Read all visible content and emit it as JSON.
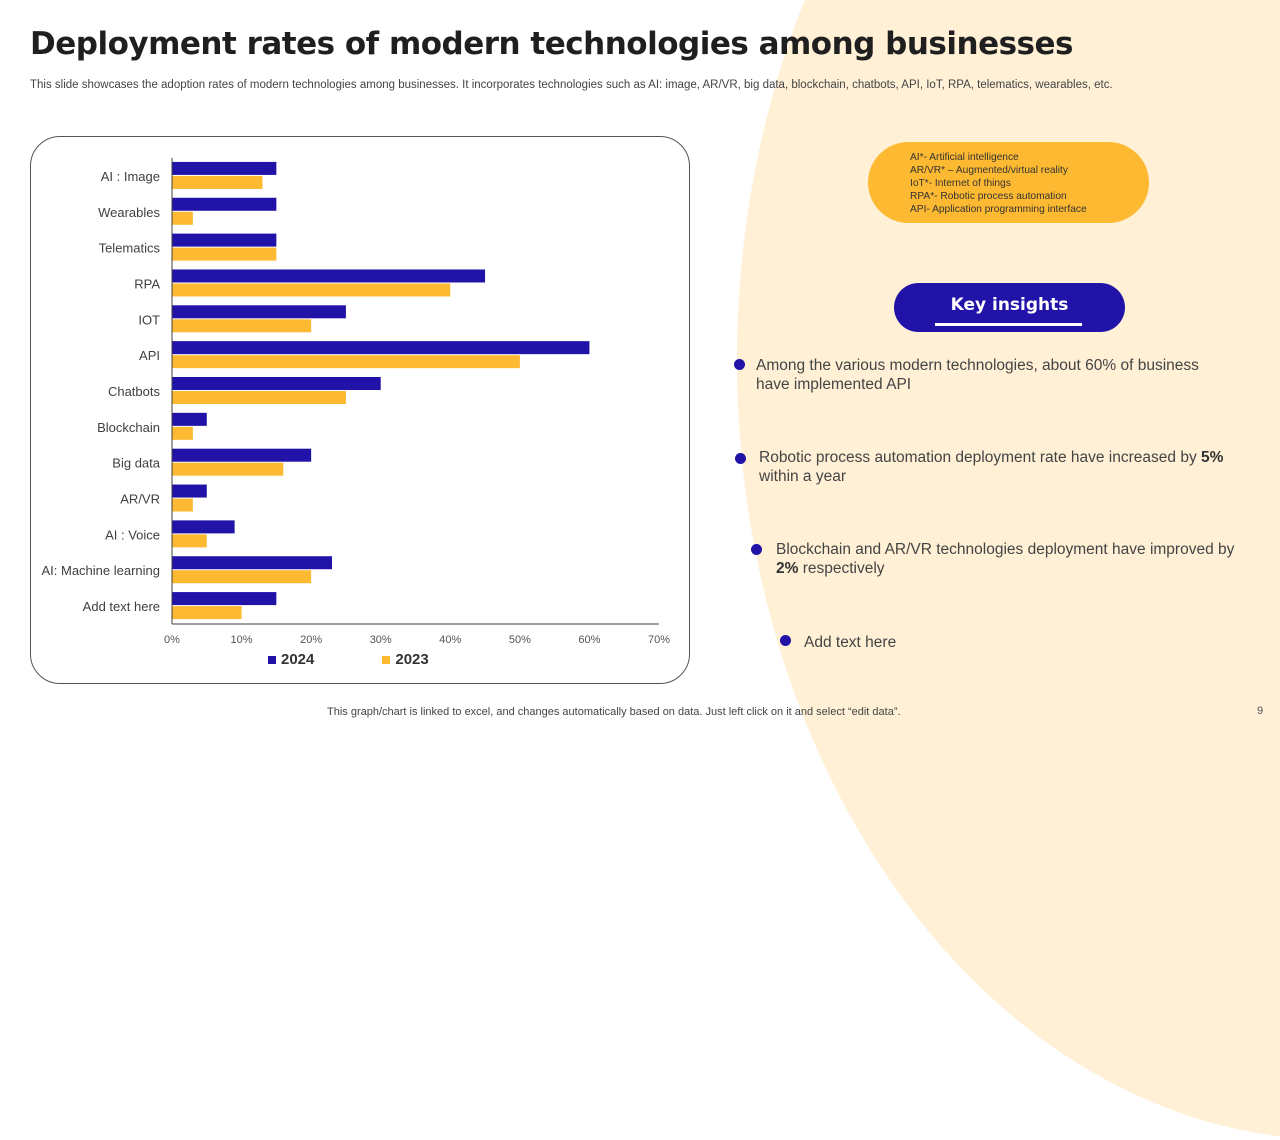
{
  "title": "Deployment rates of modern technologies among businesses",
  "subtitle": "This slide showcases the adoption rates of modern technologies among businesses. It incorporates technologies such as AI: image, AR/VR,  big data, blockchain, chatbots, API,  IoT,  RPA, telematics, wearables, etc.",
  "colors": {
    "series_2024": "#2112a8",
    "series_2023": "#fdb931",
    "accent_background": "#fff0d6",
    "key_button": "#2112a8"
  },
  "chart_data": {
    "type": "bar",
    "orientation": "horizontal",
    "title": "",
    "xlabel": "",
    "ylabel": "",
    "categories": [
      "AI : Image",
      "Wearables",
      "Telematics",
      "RPA",
      "IOT",
      "API",
      "Chatbots",
      "Blockchain",
      "Big data",
      "AR/VR",
      "AI : Voice",
      "AI: Machine learning",
      "Add text here"
    ],
    "series": [
      {
        "name": "2024",
        "values": [
          15,
          15,
          15,
          45,
          25,
          60,
          30,
          5,
          20,
          5,
          9,
          23,
          15
        ]
      },
      {
        "name": "2023",
        "values": [
          13,
          3,
          15,
          40,
          20,
          50,
          25,
          3,
          16,
          3,
          5,
          20,
          10
        ]
      }
    ],
    "unit": "%",
    "xlim": [
      0,
      70
    ],
    "x_ticks": [
      "0%",
      "10%",
      "20%",
      "30%",
      "40%",
      "50%",
      "60%",
      "70%"
    ],
    "grid": false,
    "legend": [
      "2024",
      "2023"
    ],
    "legend_position": "bottom"
  },
  "abbreviations": [
    "AI*- Artificial intelligence",
    "AR/VR* – Augmented/virtual reality",
    "IoT*- Internet of things",
    "RPA*- Robotic process automation",
    "API- Application programming interface"
  ],
  "key_insights": {
    "label": "Key insights",
    "items": [
      {
        "text": "Among the various modern technologies, about 60% of business have implemented API",
        "bold": ""
      },
      {
        "text": "Robotic process automation deployment rate have increased by ",
        "bold": "5%",
        "after": "within a year"
      },
      {
        "text": "Blockchain and AR/VR technologies deployment have improved by ",
        "bold": "2%",
        "after": " respectively"
      },
      {
        "text": "Add text here",
        "bold": ""
      }
    ]
  },
  "footer": "This graph/chart is linked to excel,  and changes automatically based on data. Just left click on it and select “edit data”.",
  "page_number": "9"
}
